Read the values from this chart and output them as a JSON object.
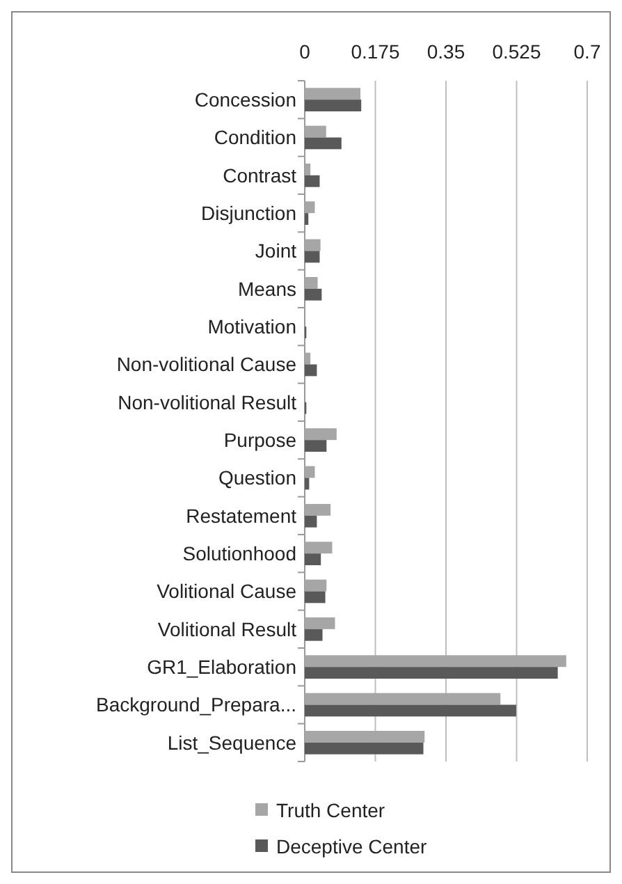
{
  "chart_data": {
    "type": "bar",
    "orientation": "horizontal",
    "categories": [
      "Concession",
      "Condition",
      "Contrast",
      "Disjunction",
      "Joint",
      "Means",
      "Motivation",
      "Non-volitional Cause",
      "Non-volitional Result",
      "Purpose",
      "Question",
      "Restatement",
      "Solutionhood",
      "Volitional Cause",
      "Volitional Result",
      "GR1_Elaboration",
      "Background_Prepara...",
      "List_Sequence"
    ],
    "series": [
      {
        "name": "Truth Center",
        "color": "#a6a6a6",
        "values": [
          0.138,
          0.053,
          0.014,
          0.025,
          0.039,
          0.032,
          null,
          0.014,
          null,
          0.079,
          0.025,
          0.064,
          0.068,
          0.054,
          0.075,
          0.648,
          0.485,
          0.297
        ]
      },
      {
        "name": "Deceptive Center",
        "color": "#595959",
        "values": [
          0.14,
          0.091,
          0.037,
          0.009,
          0.037,
          0.042,
          0.004,
          0.03,
          0.004,
          0.054,
          0.011,
          0.03,
          0.04,
          0.051,
          0.044,
          0.627,
          0.524,
          0.294
        ]
      }
    ],
    "xlim": [
      0,
      0.7
    ],
    "xticks": [
      0,
      0.175,
      0.35,
      0.525,
      0.7
    ],
    "grid": "x",
    "legend": "bottom"
  }
}
